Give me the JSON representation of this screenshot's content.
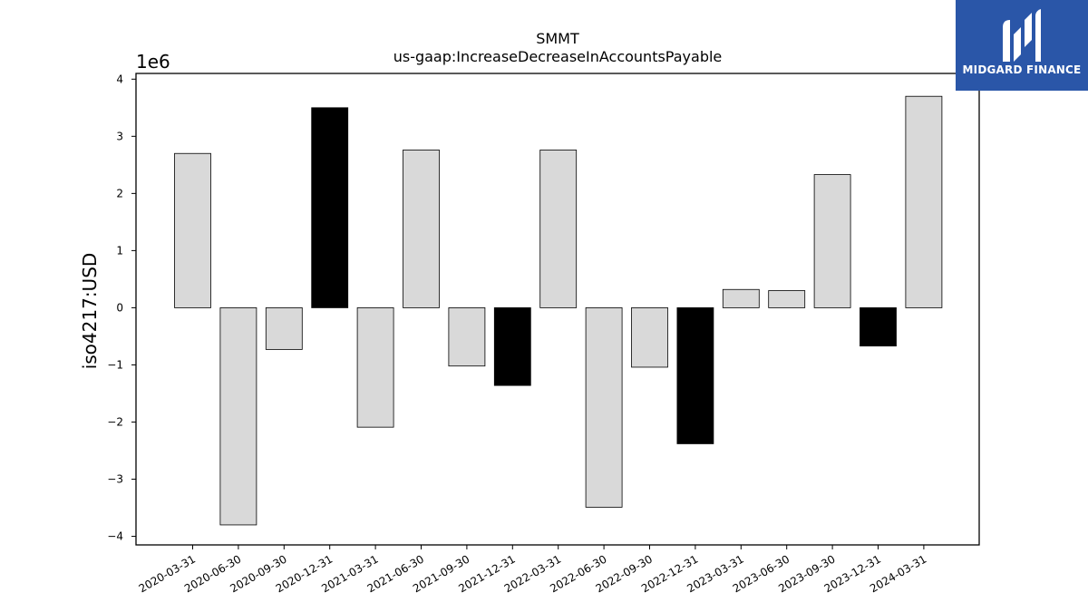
{
  "brand": {
    "name": "MIDGARD FINANCE",
    "icon": "midgard-logo-icon"
  },
  "colors": {
    "normal_bar": "#d9d9d9",
    "highlight_bar": "#000000",
    "edge": "#000000",
    "logo_bg": "#2a56a8"
  },
  "chart_data": {
    "type": "bar",
    "title": "SMMT",
    "subtitle": "us-gaap:IncreaseDecreaseInAccountsPayable",
    "ylabel": "iso4217:USD",
    "xlabel": "",
    "scale_label": "1e6",
    "ylim": [
      -4.15,
      4.1
    ],
    "yticks": [
      -4,
      -3,
      -2,
      -1,
      0,
      1,
      2,
      3,
      4
    ],
    "ytick_labels": [
      "−4",
      "−3",
      "−2",
      "−1",
      "0",
      "1",
      "2",
      "3",
      "4"
    ],
    "categories": [
      "2020-03-31",
      "2020-06-30",
      "2020-09-30",
      "2020-12-31",
      "2021-03-31",
      "2021-06-30",
      "2021-09-30",
      "2021-12-31",
      "2022-03-31",
      "2022-06-30",
      "2022-09-30",
      "2022-12-31",
      "2023-03-31",
      "2023-06-30",
      "2023-09-30",
      "2023-12-31",
      "2024-03-31"
    ],
    "values": [
      2.7,
      -3.8,
      -0.73,
      3.5,
      -2.09,
      2.76,
      -1.02,
      -1.36,
      2.76,
      -3.49,
      -1.04,
      -2.38,
      0.32,
      0.3,
      2.33,
      -0.67,
      3.7
    ],
    "highlight": [
      false,
      false,
      false,
      true,
      false,
      false,
      false,
      true,
      false,
      false,
      false,
      true,
      false,
      false,
      false,
      true,
      false
    ],
    "grid": false,
    "legend": "none"
  }
}
